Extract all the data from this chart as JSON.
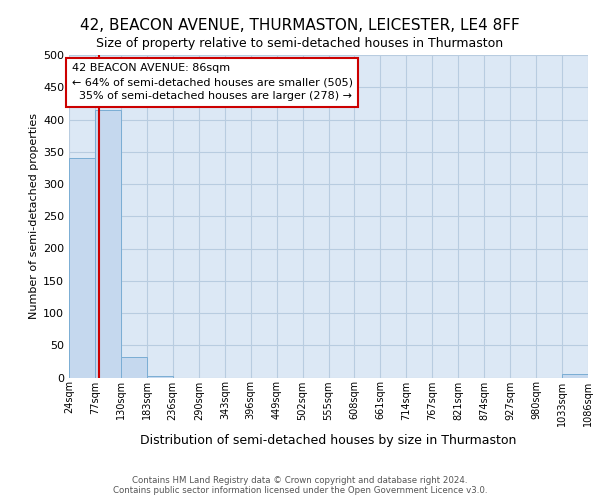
{
  "title1": "42, BEACON AVENUE, THURMASTON, LEICESTER, LE4 8FF",
  "title2": "Size of property relative to semi-detached houses in Thurmaston",
  "xlabel": "Distribution of semi-detached houses by size in Thurmaston",
  "ylabel": "Number of semi-detached properties",
  "footer1": "Contains HM Land Registry data © Crown copyright and database right 2024.",
  "footer2": "Contains public sector information licensed under the Open Government Licence v3.0.",
  "bins": [
    "24sqm",
    "77sqm",
    "130sqm",
    "183sqm",
    "236sqm",
    "290sqm",
    "343sqm",
    "396sqm",
    "449sqm",
    "502sqm",
    "555sqm",
    "608sqm",
    "661sqm",
    "714sqm",
    "767sqm",
    "821sqm",
    "874sqm",
    "927sqm",
    "980sqm",
    "1033sqm",
    "1086sqm"
  ],
  "bar_heights": [
    340,
    415,
    32,
    3,
    0,
    0,
    0,
    0,
    0,
    0,
    0,
    0,
    0,
    0,
    0,
    0,
    0,
    0,
    0,
    5,
    0
  ],
  "bar_color": "#c5d8ee",
  "bar_edge_color": "#7aadd4",
  "background_color": "#dce8f5",
  "grid_color": "#b8cce0",
  "annotation_line1": "42 BEACON AVENUE: 86sqm",
  "annotation_line2": "← 64% of semi-detached houses are smaller (505)",
  "annotation_line3": "  35% of semi-detached houses are larger (278) →",
  "red_line_x": 86,
  "red_color": "#cc0000",
  "annotation_box_color": "#ffffff",
  "annotation_box_edge": "#cc0000",
  "ylim": [
    0,
    500
  ],
  "yticks": [
    0,
    50,
    100,
    150,
    200,
    250,
    300,
    350,
    400,
    450,
    500
  ],
  "bin_edges_num": [
    24,
    77,
    130,
    183,
    236,
    290,
    343,
    396,
    449,
    502,
    555,
    608,
    661,
    714,
    767,
    821,
    874,
    927,
    980,
    1033,
    1086
  ]
}
